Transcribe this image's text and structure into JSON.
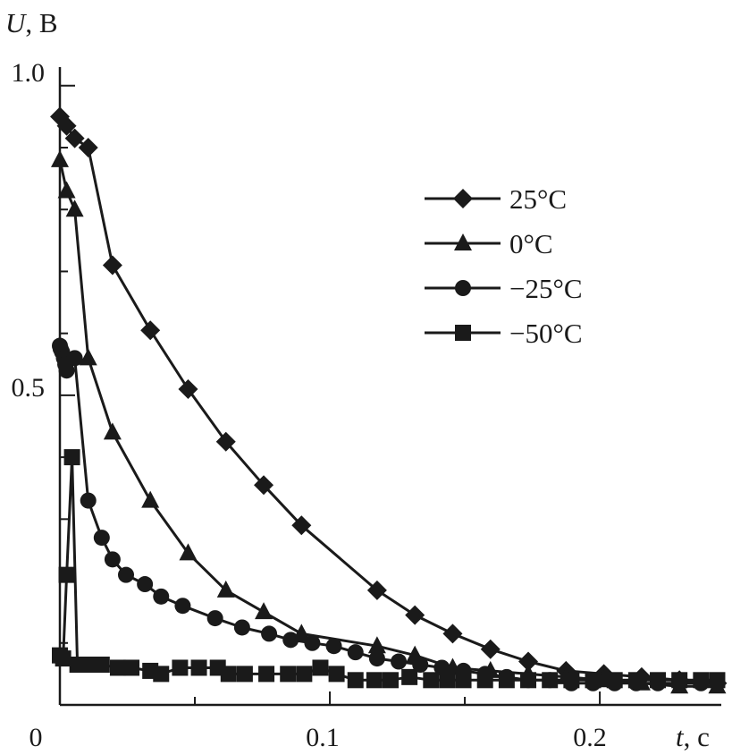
{
  "chart_data": {
    "type": "line",
    "axes": {
      "x": {
        "name": "t",
        "unit": ", с",
        "ticks": [
          "0",
          "0.1",
          "0.2"
        ],
        "range": [
          0,
          0.245
        ]
      },
      "y": {
        "name": "U",
        "unit": ", В",
        "ticks": [
          "0.5",
          "1.0"
        ],
        "range": [
          0,
          1.03
        ]
      }
    },
    "legend_position": "upper-right",
    "series": [
      {
        "name": "25°C",
        "marker": "diamond",
        "x": [
          0.0,
          0.0025,
          0.0055,
          0.0105,
          0.0195,
          0.0335,
          0.0475,
          0.0615,
          0.0755,
          0.0895,
          0.1175,
          0.1315,
          0.1455,
          0.1595,
          0.1735,
          0.1875,
          0.2015,
          0.2155,
          0.2295,
          0.2435
        ],
        "y": [
          0.95,
          0.935,
          0.915,
          0.9,
          0.71,
          0.605,
          0.51,
          0.425,
          0.355,
          0.29,
          0.185,
          0.145,
          0.115,
          0.09,
          0.07,
          0.055,
          0.05,
          0.045,
          0.04,
          0.035
        ]
      },
      {
        "name": "0°C",
        "marker": "triangle",
        "x": [
          0.0,
          0.0025,
          0.0055,
          0.0105,
          0.0195,
          0.0335,
          0.0475,
          0.0615,
          0.0755,
          0.0895,
          0.1175,
          0.1315,
          0.1455,
          0.1595,
          0.1735,
          0.1875,
          0.2015,
          0.2155,
          0.2295,
          0.2435
        ],
        "y": [
          0.88,
          0.83,
          0.8,
          0.56,
          0.44,
          0.33,
          0.245,
          0.185,
          0.15,
          0.115,
          0.095,
          0.08,
          0.06,
          0.055,
          0.05,
          0.045,
          0.04,
          0.035,
          0.03,
          0.03
        ]
      },
      {
        "name": "−25°C",
        "marker": "circle",
        "x": [
          0.0,
          0.0003,
          0.0008,
          0.0015,
          0.002,
          0.0025,
          0.0055,
          0.0105,
          0.0155,
          0.0195,
          0.0245,
          0.0315,
          0.0375,
          0.0455,
          0.0575,
          0.0675,
          0.0775,
          0.0855,
          0.0935,
          0.1015,
          0.1095,
          0.1175,
          0.1255,
          0.1335,
          0.1415,
          0.1495,
          0.1575,
          0.1655,
          0.1735,
          0.1815,
          0.1895,
          0.1975,
          0.2055,
          0.2135,
          0.2215,
          0.2295,
          0.2375,
          0.2435
        ],
        "y": [
          0.58,
          0.575,
          0.57,
          0.56,
          0.55,
          0.54,
          0.56,
          0.33,
          0.27,
          0.235,
          0.21,
          0.195,
          0.175,
          0.16,
          0.14,
          0.125,
          0.115,
          0.105,
          0.1,
          0.095,
          0.085,
          0.075,
          0.07,
          0.065,
          0.06,
          0.055,
          0.05,
          0.045,
          0.04,
          0.04,
          0.035,
          0.035,
          0.035,
          0.035,
          0.035,
          0.035,
          0.035,
          0.035
        ]
      },
      {
        "name": "−50°C",
        "marker": "square",
        "x": [
          0.0,
          0.0012,
          0.0025,
          0.0045,
          0.0065,
          0.0105,
          0.0155,
          0.0215,
          0.0265,
          0.0335,
          0.0375,
          0.0445,
          0.0515,
          0.0585,
          0.0625,
          0.0685,
          0.0765,
          0.0845,
          0.0905,
          0.0965,
          0.1025,
          0.1095,
          0.1165,
          0.1225,
          0.1295,
          0.1375,
          0.1435,
          0.1495,
          0.1575,
          0.1655,
          0.1735,
          0.1815,
          0.1895,
          0.1975,
          0.2055,
          0.2135,
          0.2215,
          0.2295,
          0.2375,
          0.2435
        ],
        "y": [
          0.08,
          0.075,
          0.21,
          0.4,
          0.065,
          0.065,
          0.065,
          0.06,
          0.06,
          0.055,
          0.05,
          0.06,
          0.06,
          0.06,
          0.05,
          0.05,
          0.05,
          0.05,
          0.05,
          0.06,
          0.05,
          0.04,
          0.04,
          0.04,
          0.045,
          0.04,
          0.04,
          0.04,
          0.04,
          0.04,
          0.04,
          0.04,
          0.04,
          0.04,
          0.04,
          0.04,
          0.04,
          0.04,
          0.04,
          0.04
        ]
      }
    ]
  }
}
